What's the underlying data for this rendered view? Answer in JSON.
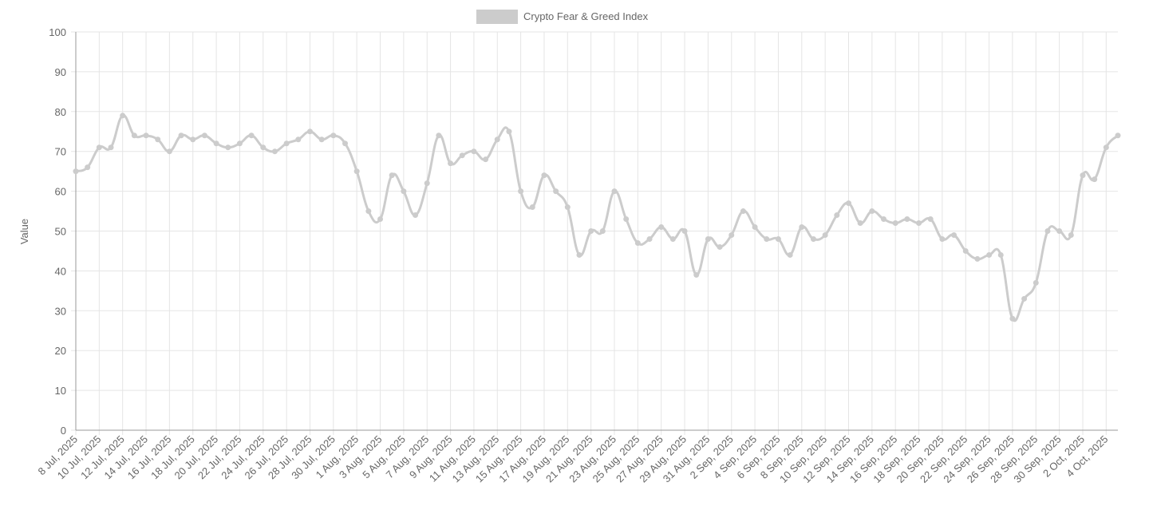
{
  "chart_data": {
    "type": "line",
    "y_label": "Value",
    "categories": [
      "8 Jul, 2025",
      null,
      "10 Jul, 2025",
      null,
      "12 Jul, 2025",
      null,
      "14 Jul, 2025",
      null,
      "16 Jul, 2025",
      null,
      "18 Jul, 2025",
      null,
      "20 Jul, 2025",
      null,
      "22 Jul, 2025",
      null,
      "24 Jul, 2025",
      null,
      "26 Jul, 2025",
      null,
      "28 Jul, 2025",
      null,
      "30 Jul, 2025",
      null,
      "1 Aug, 2025",
      null,
      "3 Aug, 2025",
      null,
      "5 Aug, 2025",
      null,
      "7 Aug, 2025",
      null,
      "9 Aug, 2025",
      null,
      "11 Aug, 2025",
      null,
      "13 Aug, 2025",
      null,
      "15 Aug, 2025",
      null,
      "17 Aug, 2025",
      null,
      "19 Aug, 2025",
      null,
      "21 Aug, 2025",
      null,
      "23 Aug, 2025",
      null,
      "25 Aug, 2025",
      null,
      "27 Aug, 2025",
      null,
      "29 Aug, 2025",
      null,
      "31 Aug, 2025",
      null,
      "2 Sep, 2025",
      null,
      "4 Sep, 2025",
      null,
      "6 Sep, 2025",
      null,
      "8 Sep, 2025",
      null,
      "10 Sep, 2025",
      null,
      "12 Sep, 2025",
      null,
      "14 Sep, 2025",
      null,
      "16 Sep, 2025",
      null,
      "18 Sep, 2025",
      null,
      "20 Sep, 2025",
      null,
      "22 Sep, 2025",
      null,
      "24 Sep, 2025",
      null,
      "26 Sep, 2025",
      null,
      "28 Sep, 2025",
      null,
      "30 Sep, 2025",
      null,
      "2 Oct, 2025",
      null,
      "4 Oct, 2025",
      null
    ],
    "series": [
      {
        "name": "Crypto Fear & Greed Index",
        "color": "#cccccc",
        "values": [
          65,
          66,
          71,
          71,
          79,
          74,
          74,
          73,
          70,
          74,
          73,
          74,
          72,
          71,
          72,
          74,
          71,
          70,
          72,
          73,
          75,
          73,
          74,
          72,
          65,
          55,
          53,
          64,
          60,
          54,
          62,
          74,
          67,
          69,
          70,
          68,
          73,
          75,
          60,
          56,
          64,
          60,
          56,
          44,
          50,
          50,
          60,
          53,
          47,
          48,
          51,
          48,
          50,
          39,
          48,
          46,
          49,
          55,
          51,
          48,
          48,
          44,
          51,
          48,
          49,
          54,
          57,
          52,
          55,
          53,
          52,
          53,
          52,
          53,
          48,
          49,
          45,
          43,
          44,
          44,
          28,
          33,
          37,
          50,
          50,
          49,
          64,
          63,
          71,
          74
        ]
      }
    ],
    "ylim": [
      0,
      100
    ],
    "yticks": [
      0,
      10,
      20,
      30,
      40,
      50,
      60,
      70,
      80,
      90,
      100
    ],
    "grid": true,
    "legend": "top"
  }
}
